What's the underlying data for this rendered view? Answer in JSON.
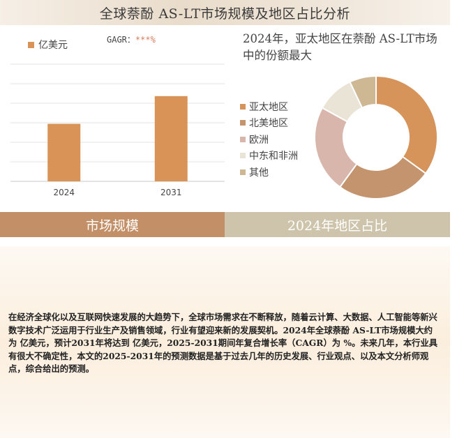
{
  "header": {
    "title": "全球萘酚 AS-LT市场规模及地区占比分析"
  },
  "left_chart": {
    "legend_label": "亿美元",
    "cagr_label": "GAGR：",
    "cagr_value": "***%"
  },
  "right_chart": {
    "title": "2024年，亚太地区在萘酚 AS-LT市场中的份额最大"
  },
  "tabs": {
    "left": "市场规模",
    "right": "2024年地区占比"
  },
  "description": "在经济全球化以及互联网快速发展的大趋势下，全球市场需求在不断释放，随着云计算、大数据、人工智能等新兴数字技术广泛运用于行业生产及销售领域，行业有望迎来新的发展契机。2024年全球萘酚 AS-LT市场规模大约为 亿美元，预计2031年将达到 亿美元，2025-2031期间年复合增长率（CAGR）为 %。未来几年，本行业具有很大不确定性，本文的2025-2031年的预测数据是基于过去几年的历史发展、行业观点、以及本文分析师观点，综合给出的预测。",
  "chart_data": [
    {
      "type": "bar",
      "categories": [
        "2024",
        "2031"
      ],
      "series": [
        {
          "name": "亿美元",
          "values": [
            2.7,
            4.0
          ]
        }
      ],
      "ylim": [
        0,
        5.5
      ],
      "grid": true,
      "legend": "top-left",
      "color": "#d99356"
    },
    {
      "type": "pie",
      "donut": true,
      "categories": [
        "亚太地区",
        "北美地区",
        "欧洲",
        "中东和非洲",
        "其他"
      ],
      "values": [
        35,
        25,
        23,
        10,
        7
      ],
      "colors": [
        "#d6935a",
        "#c4946f",
        "#d9b6ac",
        "#e9e4d6",
        "#cdb893"
      ],
      "legend": "left"
    }
  ]
}
